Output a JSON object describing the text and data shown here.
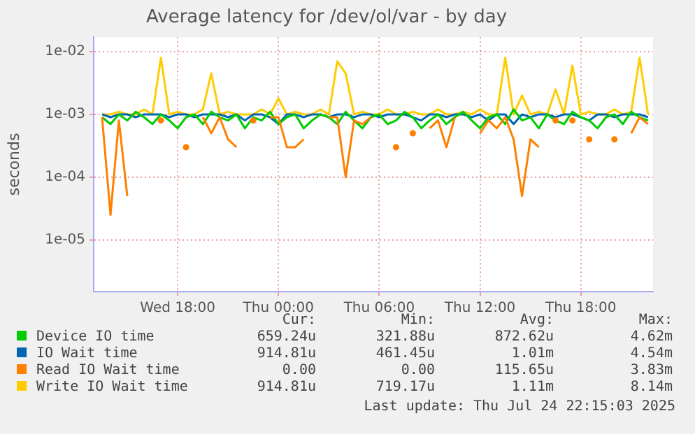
{
  "chart_data": {
    "type": "line",
    "title": "Average latency for /dev/ol/var - by day",
    "ylabel": "seconds",
    "x": [
      "2025-07-23T13:30",
      "2025-07-23T14:00",
      "2025-07-23T14:30",
      "2025-07-23T15:00",
      "2025-07-23T15:30",
      "2025-07-23T16:00",
      "2025-07-23T16:30",
      "2025-07-23T17:00",
      "2025-07-23T17:30",
      "2025-07-23T18:00",
      "2025-07-23T18:30",
      "2025-07-23T19:00",
      "2025-07-23T19:30",
      "2025-07-23T20:00",
      "2025-07-23T20:30",
      "2025-07-23T21:00",
      "2025-07-23T21:30",
      "2025-07-23T22:00",
      "2025-07-23T22:30",
      "2025-07-23T23:00",
      "2025-07-23T23:30",
      "2025-07-24T00:00",
      "2025-07-24T00:30",
      "2025-07-24T01:00",
      "2025-07-24T01:30",
      "2025-07-24T02:00",
      "2025-07-24T02:30",
      "2025-07-24T03:00",
      "2025-07-24T03:30",
      "2025-07-24T04:00",
      "2025-07-24T04:30",
      "2025-07-24T05:00",
      "2025-07-24T05:30",
      "2025-07-24T06:00",
      "2025-07-24T06:30",
      "2025-07-24T07:00",
      "2025-07-24T07:30",
      "2025-07-24T08:00",
      "2025-07-24T08:30",
      "2025-07-24T09:00",
      "2025-07-24T09:30",
      "2025-07-24T10:00",
      "2025-07-24T10:30",
      "2025-07-24T11:00",
      "2025-07-24T11:30",
      "2025-07-24T12:00",
      "2025-07-24T12:30",
      "2025-07-24T13:00",
      "2025-07-24T13:30",
      "2025-07-24T14:00",
      "2025-07-24T14:30",
      "2025-07-24T15:00",
      "2025-07-24T15:30",
      "2025-07-24T16:00",
      "2025-07-24T16:30",
      "2025-07-24T17:00",
      "2025-07-24T17:30",
      "2025-07-24T18:00",
      "2025-07-24T18:30",
      "2025-07-24T19:00",
      "2025-07-24T19:30",
      "2025-07-24T20:00",
      "2025-07-24T20:30",
      "2025-07-24T21:00",
      "2025-07-24T21:30",
      "2025-07-24T22:00"
    ],
    "series": [
      {
        "name": "Device IO time",
        "color": "#00cc00",
        "values": [
          0.0009,
          0.0007,
          0.001,
          0.0008,
          0.0011,
          0.0009,
          0.0007,
          0.001,
          0.0008,
          0.0006,
          0.0009,
          0.001,
          0.0007,
          0.0011,
          0.0009,
          0.0008,
          0.001,
          0.0006,
          0.0009,
          0.0008,
          0.0011,
          0.0007,
          0.0009,
          0.001,
          0.0006,
          0.0008,
          0.001,
          0.0009,
          0.0007,
          0.0011,
          0.0008,
          0.0006,
          0.0009,
          0.001,
          0.0007,
          0.0008,
          0.0011,
          0.0009,
          0.0006,
          0.0008,
          0.001,
          0.0007,
          0.0009,
          0.0011,
          0.0008,
          0.0006,
          0.0009,
          0.001,
          0.0007,
          0.0012,
          0.0008,
          0.0009,
          0.0006,
          0.001,
          0.0008,
          0.0007,
          0.0011,
          0.0009,
          0.0008,
          0.0006,
          0.0009,
          0.001,
          0.0007,
          0.0011,
          0.0009,
          0.0008
        ]
      },
      {
        "name": "IO Wait time",
        "color": "#0066b3",
        "values": [
          0.001,
          0.0009,
          0.001,
          0.001,
          0.0009,
          0.001,
          0.001,
          0.001,
          0.0009,
          0.001,
          0.001,
          0.0009,
          0.001,
          0.001,
          0.001,
          0.0009,
          0.001,
          0.0008,
          0.001,
          0.001,
          0.0009,
          0.0007,
          0.001,
          0.001,
          0.0009,
          0.001,
          0.001,
          0.0009,
          0.001,
          0.001,
          0.0009,
          0.001,
          0.001,
          0.0009,
          0.001,
          0.001,
          0.001,
          0.0009,
          0.0008,
          0.001,
          0.001,
          0.0009,
          0.001,
          0.001,
          0.0009,
          0.001,
          0.0008,
          0.001,
          0.001,
          0.0007,
          0.001,
          0.0009,
          0.001,
          0.001,
          0.0009,
          0.001,
          0.001,
          0.0009,
          0.0008,
          0.001,
          0.001,
          0.0009,
          0.001,
          0.001,
          0.001,
          0.0009
        ]
      },
      {
        "name": "Read IO Wait time",
        "color": "#ff8000",
        "values": [
          0.0009,
          2.5e-05,
          0.0008,
          5e-05,
          null,
          null,
          null,
          0.0008,
          null,
          null,
          0.0003,
          null,
          0.0009,
          0.0005,
          0.0009,
          0.0004,
          0.0003,
          null,
          0.0008,
          null,
          0.0009,
          0.0009,
          0.0003,
          0.0003,
          0.0004,
          null,
          null,
          0.0009,
          0.0009,
          0.0001,
          0.0008,
          0.0007,
          0.0009,
          null,
          null,
          0.0003,
          null,
          0.0005,
          null,
          0.0006,
          0.0008,
          0.0003,
          0.0009,
          null,
          null,
          0.0005,
          0.0008,
          0.0006,
          0.0009,
          0.0004,
          5e-05,
          0.0004,
          0.0003,
          null,
          0.0008,
          null,
          0.0008,
          null,
          0.0004,
          null,
          null,
          0.0004,
          null,
          0.0005,
          0.0009,
          0.0007
        ]
      },
      {
        "name": "Write IO Wait time",
        "color": "#ffcc00",
        "values": [
          0.001,
          0.001,
          0.0011,
          0.001,
          0.001,
          0.0012,
          0.001,
          0.008,
          0.001,
          0.0011,
          0.001,
          0.001,
          0.0012,
          0.0045,
          0.001,
          0.0011,
          0.001,
          0.001,
          0.001,
          0.0012,
          0.001,
          0.0018,
          0.001,
          0.0011,
          0.001,
          0.001,
          0.0012,
          0.001,
          0.007,
          0.0045,
          0.001,
          0.0011,
          0.001,
          0.001,
          0.0012,
          0.001,
          0.001,
          0.0011,
          0.001,
          0.001,
          0.0012,
          0.001,
          0.001,
          0.0011,
          0.001,
          0.0012,
          0.001,
          0.001,
          0.008,
          0.001,
          0.002,
          0.001,
          0.0011,
          0.001,
          0.0025,
          0.001,
          0.006,
          0.001,
          0.0011,
          0.001,
          0.001,
          0.0012,
          0.001,
          0.0011,
          0.008,
          0.001
        ]
      }
    ],
    "xlim": [
      "2025-07-23T13:00",
      "2025-07-24T22:18"
    ],
    "xticks": [
      {
        "value": "2025-07-23T18:00",
        "label": "Wed 18:00"
      },
      {
        "value": "2025-07-24T00:00",
        "label": "Thu 00:00"
      },
      {
        "value": "2025-07-24T06:00",
        "label": "Thu 06:00"
      },
      {
        "value": "2025-07-24T12:00",
        "label": "Thu 12:00"
      },
      {
        "value": "2025-07-24T18:00",
        "label": "Thu 18:00"
      }
    ],
    "ylim": [
      1.5e-06,
      0.017
    ],
    "yticks": [
      {
        "value": 1e-05,
        "label": "1e-05"
      },
      {
        "value": 0.0001,
        "label": "1e-04"
      },
      {
        "value": 0.001,
        "label": "1e-03"
      },
      {
        "value": 0.01,
        "label": "1e-02"
      }
    ],
    "log": "y",
    "grid": true,
    "legend": "bottom",
    "marker": "none",
    "line_style": "solid",
    "annotations": [
      "Cur:",
      "Min:",
      "Avg:",
      "Max:",
      "659.24u",
      "321.88u",
      "872.62u",
      "4.62m",
      "914.81u",
      "461.45u",
      "1.01m",
      "4.54m",
      "0.00",
      "0.00",
      "115.65u",
      "3.83m",
      "914.81u",
      "719.17u",
      "1.11m",
      "8.14m",
      "Last update: Thu Jul 24 22:15:03 2025"
    ]
  }
}
